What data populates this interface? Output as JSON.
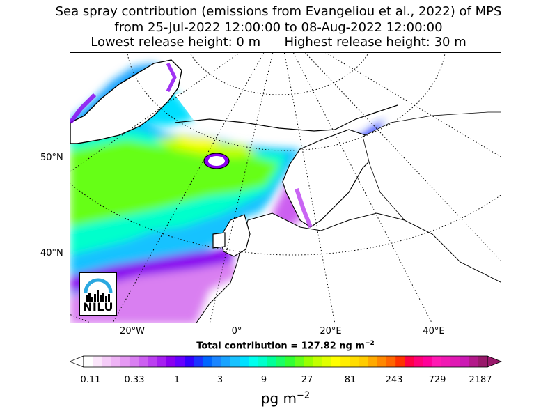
{
  "title": {
    "line1": "Sea spray contribution (emissions from Evangeliou et al., 2022) of MPS",
    "line2": "from 25-Jul-2022 12:00:00 to 08-Aug-2022 12:00:00",
    "line3": "Lowest release height: 0 m      Highest release height: 30 m"
  },
  "axes": {
    "lat_labels": [
      "50°N",
      "40°N"
    ],
    "lon_labels": [
      "20°W",
      "0°",
      "20°E",
      "40°E"
    ]
  },
  "total_contribution": "Total contribution = 127.82 ng m",
  "total_exponent": "−2",
  "colorbar": {
    "tick_labels": [
      "0.11",
      "0.33",
      "1",
      "3",
      "9",
      "27",
      "81",
      "243",
      "729",
      "2187"
    ],
    "units": "pg m",
    "units_exponent": "−2",
    "colors": [
      "#ffffff",
      "#fbe6fb",
      "#f5ccf8",
      "#eeb3f5",
      "#e599f3",
      "#d97ff1",
      "#cc5ff0",
      "#bb3ff0",
      "#a61ff0",
      "#8a00f0",
      "#6600ff",
      "#3300ff",
      "#1a33ff",
      "#0066ff",
      "#1a85ff",
      "#19a3ff",
      "#19c2ff",
      "#00e0ff",
      "#00ffee",
      "#00ffcc",
      "#00ff99",
      "#19ff66",
      "#33ff33",
      "#66ff19",
      "#99ff00",
      "#c2ff00",
      "#e0ff00",
      "#ffff00",
      "#ffee00",
      "#ffdd00",
      "#ffcc00",
      "#ffaa00",
      "#ff8800",
      "#ff6600",
      "#ff3300",
      "#ff0044",
      "#ff0077",
      "#ff0099",
      "#ff19b3",
      "#f019b3",
      "#e019b3",
      "#cc19b3",
      "#b3198a",
      "#99196b"
    ]
  },
  "logo": {
    "text": "NILU",
    "colors": {
      "arc": "#2ba8e0",
      "text": "#000000"
    }
  }
}
